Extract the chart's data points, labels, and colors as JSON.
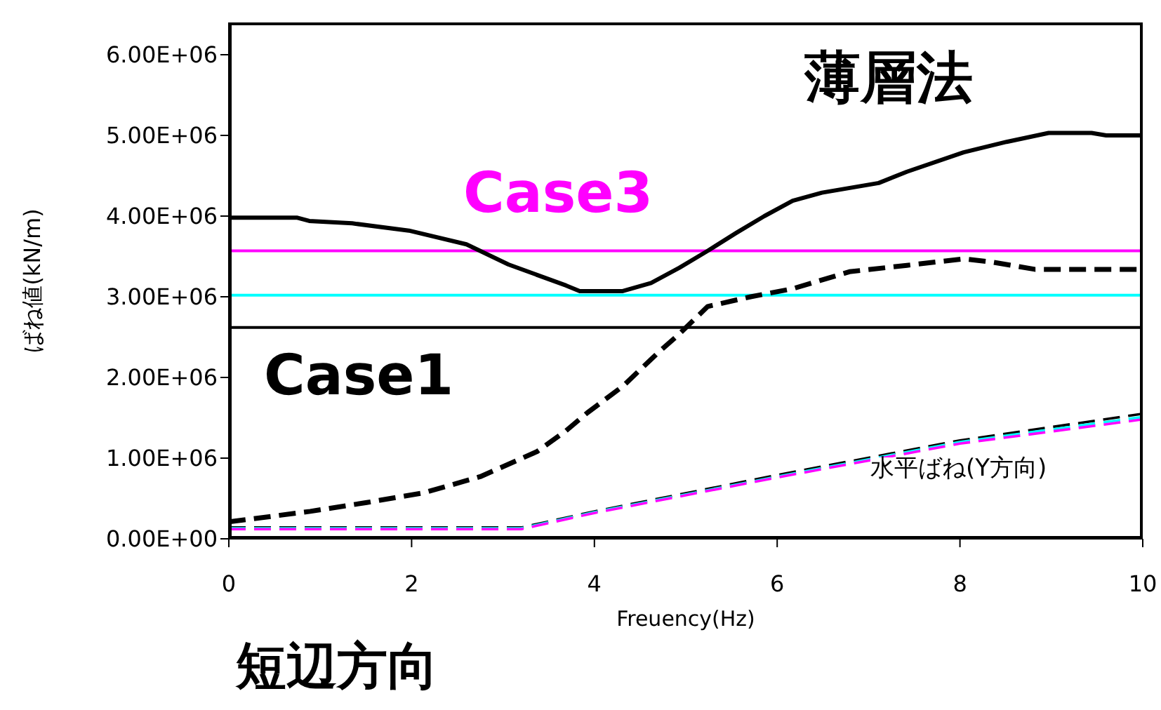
{
  "chart_data": {
    "type": "line",
    "xlabel": "Freuency(Hz)",
    "ylabel": "ばね値(kN/m)",
    "xlim": [
      0,
      10
    ],
    "xticks": [
      0,
      2,
      4,
      6,
      8,
      10
    ],
    "ylim": [
      0,
      6400000
    ],
    "yticks": [
      {
        "value": 0,
        "label": "0.00E+00"
      },
      {
        "value": 1000000,
        "label": "1.00E+06"
      },
      {
        "value": 2000000,
        "label": "2.00E+06"
      },
      {
        "value": 3000000,
        "label": "3.00E+06"
      },
      {
        "value": 4000000,
        "label": "4.00E+06"
      },
      {
        "value": 5000000,
        "label": "5.00E+06"
      },
      {
        "value": 6000000,
        "label": "6.00E+06"
      }
    ],
    "marker": "none",
    "series": [
      {
        "color": "#000000",
        "line_style": "solid",
        "x": [
          0,
          0.75,
          0.88,
          1.35,
          1.97,
          2.6,
          3.06,
          3.69,
          3.84,
          4.31,
          4.62,
          4.93,
          5.24,
          5.55,
          5.86,
          6.17,
          6.49,
          7.11,
          7.42,
          8.04,
          8.51,
          8.97,
          9.44,
          9.6,
          10
        ],
        "values": [
          3980000,
          3980000,
          3940000,
          3910000,
          3820000,
          3650000,
          3400000,
          3140000,
          3070000,
          3070000,
          3170000,
          3360000,
          3570000,
          3790000,
          4000000,
          4190000,
          4290000,
          4410000,
          4550000,
          4790000,
          4920000,
          5030000,
          5030000,
          5000000,
          5000000
        ]
      },
      {
        "color": "#000000",
        "line_style": "dashed",
        "x": [
          0,
          0.89,
          1.51,
          2.13,
          2.75,
          3.37,
          3.69,
          3.92,
          4.31,
          4.7,
          4.93,
          5.24,
          5.71,
          6.17,
          6.79,
          7.42,
          8.04,
          8.35,
          8.82,
          10
        ],
        "values": [
          210000,
          340000,
          450000,
          570000,
          770000,
          1080000,
          1340000,
          1560000,
          1890000,
          2310000,
          2540000,
          2880000,
          3000000,
          3100000,
          3310000,
          3390000,
          3470000,
          3430000,
          3340000,
          3340000
        ]
      },
      {
        "color": "#000000",
        "line_style": "dashed",
        "x": [
          0,
          3.2,
          4,
          6,
          8,
          10
        ],
        "values": [
          140000,
          140000,
          340000,
          790000,
          1220000,
          1550000
        ]
      },
      {
        "color": "#00ffff",
        "line_style": "dashed",
        "x": [
          0,
          3.2,
          4,
          6,
          8,
          10
        ],
        "values": [
          130000,
          130000,
          330000,
          770000,
          1200000,
          1510000
        ]
      },
      {
        "color": "#ff00ff",
        "line_style": "dashed",
        "x": [
          0,
          3.2,
          4,
          6,
          8,
          10
        ],
        "values": [
          120000,
          120000,
          320000,
          760000,
          1180000,
          1480000
        ]
      }
    ],
    "ref_lines": [
      {
        "axis": "y",
        "value": 3570000,
        "color": "#ff00ff"
      },
      {
        "axis": "y",
        "value": 3020000,
        "color": "#00ffff"
      },
      {
        "axis": "y",
        "value": 2620000,
        "color": "#000000"
      }
    ],
    "annotations": [
      "薄層法",
      "Case3",
      "Case1",
      "水平ばね(Y方向)",
      "短辺方向"
    ]
  }
}
